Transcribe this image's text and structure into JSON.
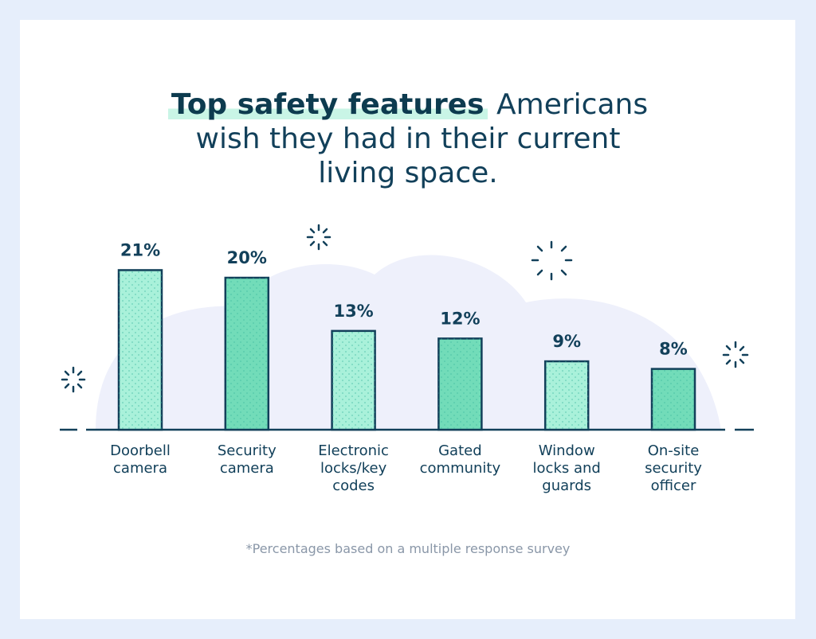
{
  "chart_data": {
    "type": "bar",
    "title": {
      "highlight": "Top safety features",
      "rest": "Americans wish they had in their current living space."
    },
    "categories": [
      "Doorbell camera",
      "Security camera",
      "Electronic locks/key codes",
      "Gated community",
      "Window locks and guards",
      "On-site security officer"
    ],
    "values": [
      21,
      20,
      13,
      12,
      9,
      8
    ],
    "value_labels": [
      "21%",
      "20%",
      "13%",
      "12%",
      "9%",
      "8%"
    ],
    "colors": [
      "#a9f1da",
      "#72dcb9",
      "#a9f1da",
      "#72dcb9",
      "#a9f1da",
      "#72dcb9"
    ],
    "footnote": "*Percentages based on a multiple response survey"
  }
}
